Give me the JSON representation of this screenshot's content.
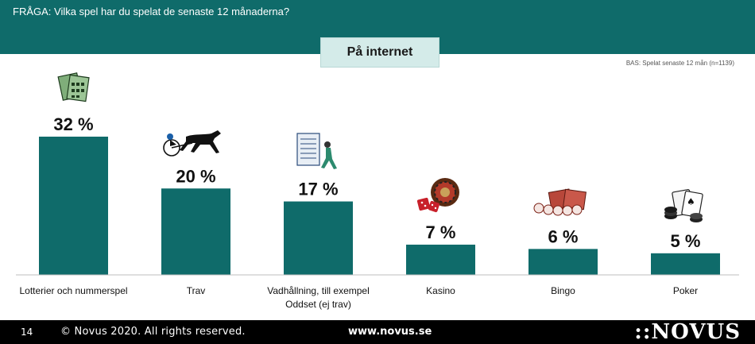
{
  "header": {
    "question": "FRÅGA: Vilka spel har du spelat de senaste 12 månaderna?",
    "tab_label": "På internet",
    "base_note": "BAS: Spelat senaste 12 mån (n=1139)"
  },
  "footer": {
    "page_number": "14",
    "copyright": "© Novus 2020. All rights reserved.",
    "website": "www.novus.se",
    "logo_text": "::NOVUS"
  },
  "colors": {
    "header": "#0f6b6a",
    "bar": "#0f6b6a",
    "tab_bg": "#d4ebe9",
    "footer": "#000000"
  },
  "chart_data": {
    "type": "bar",
    "categories": [
      [
        "Lotterier och nummerspel"
      ],
      [
        "Trav"
      ],
      [
        "Vadhållning, till exempel",
        "Oddset (ej trav)"
      ],
      [
        "Kasino"
      ],
      [
        "Bingo"
      ],
      [
        "Poker"
      ]
    ],
    "values": [
      32,
      20,
      17,
      7,
      6,
      5
    ],
    "value_labels": [
      "32 %",
      "20 %",
      "17 %",
      "7 %",
      "6 %",
      "5 %"
    ],
    "icons": [
      "lottery-tickets-icon",
      "harness-racing-icon",
      "betting-slip-icon",
      "roulette-dice-icon",
      "bingo-balls-icon",
      "poker-cards-chips-icon"
    ],
    "ylim": [
      0,
      32
    ],
    "grid": false,
    "legend": "none"
  }
}
